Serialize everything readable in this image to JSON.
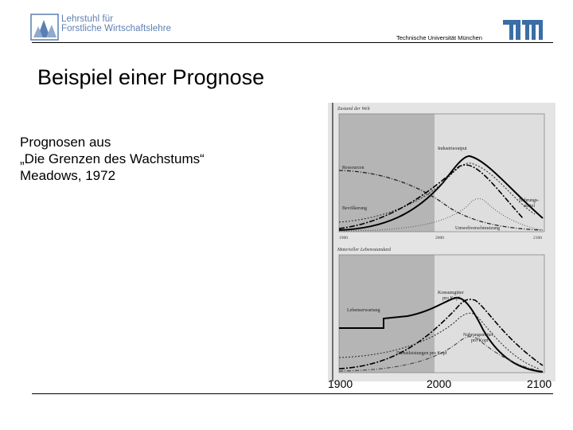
{
  "header": {
    "chair_line1": "Lehrstuhl für",
    "chair_line2": "Forstliche Wirtschaftslehre",
    "university": "Technische Universität München"
  },
  "slide": {
    "title": "Beispiel einer Prognose",
    "body_lines": [
      "Prognosen aus",
      "„Die Grenzen des Wachstums“",
      "Meadows, 1972"
    ]
  },
  "figure": {
    "top_title": "Zustand der Welt",
    "bottom_title": "Materieller Lebensstandard",
    "top_labels": {
      "industrie": "Industrieoutput",
      "ressourcen": "Ressourcen",
      "nahrung1": "Nahrungs-",
      "nahrung2": "mittel",
      "bevoelkerung": "Bevölkerung",
      "umwelt": "Umweltverschmutzung"
    },
    "bottom_labels": {
      "konsum1": "Konsumgüter",
      "konsum2": "pro Kopf",
      "lebenserwartung": "Lebenserwartung",
      "nahrung1": "Nahrungsmittel",
      "nahrung2": "pro Kopf",
      "dienst": "Dienstleistungen pro Kopf"
    },
    "inner_ticks": [
      "1900",
      "2000",
      "2100"
    ],
    "axis_ticks": [
      "1900",
      "2000",
      "2100"
    ]
  }
}
